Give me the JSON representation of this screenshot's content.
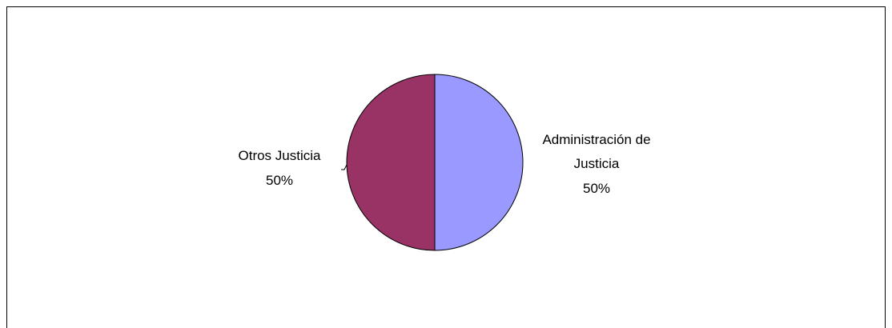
{
  "chart_data": {
    "type": "pie",
    "title": "",
    "start_angle_deg": 0,
    "direction": "clockwise",
    "slices": [
      {
        "name": "Administración de Justicia",
        "name_lines": [
          "Administración de",
          "Justicia"
        ],
        "value": 50,
        "percent_label": "50%",
        "color": "#9999ff"
      },
      {
        "name": "Otros Justicia",
        "name_lines": [
          "Otros Justicia"
        ],
        "value": 50,
        "percent_label": "50%",
        "color": "#993366"
      }
    ],
    "legend": "none",
    "labels": "outside-with-leader"
  }
}
